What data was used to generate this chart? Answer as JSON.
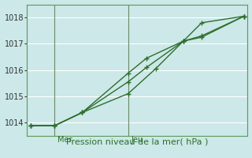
{
  "xlabel": "Pression niveau de la mer( hPa )",
  "background_color": "#cce8e8",
  "grid_color": "#b0d8d8",
  "line_color": "#2d6e2d",
  "xlim": [
    0,
    12
  ],
  "ylim": [
    1013.5,
    1018.5
  ],
  "yticks": [
    1014,
    1015,
    1016,
    1017,
    1018
  ],
  "day_positions": [
    1.5,
    5.5
  ],
  "day_labels": [
    "Mer",
    "Jeu"
  ],
  "line1_x": [
    0.2,
    1.5,
    3.0,
    5.5,
    7.0,
    8.5,
    9.5,
    11.8
  ],
  "line1_y": [
    1013.88,
    1013.88,
    1014.38,
    1015.1,
    1016.05,
    1017.1,
    1017.25,
    1018.05
  ],
  "line2_x": [
    0.2,
    1.5,
    3.0,
    5.5,
    6.5,
    8.5,
    9.5,
    11.8
  ],
  "line2_y": [
    1013.88,
    1013.88,
    1014.38,
    1015.55,
    1016.1,
    1017.1,
    1017.3,
    1018.05
  ],
  "line3_x": [
    0.2,
    1.5,
    3.0,
    5.5,
    6.5,
    8.5,
    9.5,
    11.8
  ],
  "line3_y": [
    1013.88,
    1013.88,
    1014.38,
    1015.88,
    1016.45,
    1017.1,
    1017.8,
    1018.05
  ],
  "marker_size": 5,
  "line_width": 1.0,
  "font_color": "#2d6e2d",
  "spine_color": "#5a9a5a",
  "vline_color": "#6a8a6a"
}
